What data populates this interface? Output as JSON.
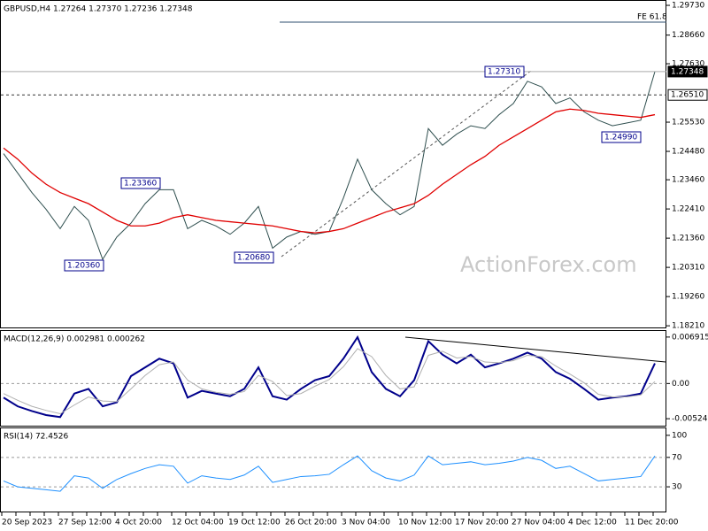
{
  "chart_data": [
    {
      "type": "price",
      "title": "GBPUSD,H4 1.27264 1.27370 1.27236 1.27348",
      "watermark": "ActionForex.com",
      "ylim": [
        1.1815,
        1.2989
      ],
      "yticks": [
        {
          "value": 1.2973,
          "label": "1.29730"
        },
        {
          "value": 1.2866,
          "label": "1.28660"
        },
        {
          "value": 1.2763,
          "label": "1.27630"
        },
        {
          "value": 1.2553,
          "label": "1.25530"
        },
        {
          "value": 1.2448,
          "label": "1.24480"
        },
        {
          "value": 1.2346,
          "label": "1.23460"
        },
        {
          "value": 1.2241,
          "label": "1.22410"
        },
        {
          "value": 1.2136,
          "label": "1.21360"
        },
        {
          "value": 1.2031,
          "label": "1.20310"
        },
        {
          "value": 1.1926,
          "label": "1.19260"
        },
        {
          "value": 1.1821,
          "label": "1.18210"
        }
      ],
      "series": [
        {
          "color": "#2f4f4f",
          "values": [
            1.244,
            1.237,
            1.23,
            1.224,
            1.217,
            1.225,
            1.22,
            1.206,
            1.214,
            1.219,
            1.226,
            1.231,
            1.231,
            1.217,
            1.22,
            1.218,
            1.215,
            1.219,
            1.225,
            1.21,
            1.214,
            1.216,
            1.215,
            1.216,
            1.228,
            1.242,
            1.231,
            1.226,
            1.222,
            1.225,
            1.253,
            1.247,
            1.251,
            1.254,
            1.253,
            1.258,
            1.262,
            1.27,
            1.268,
            1.262,
            1.264,
            1.259,
            1.256,
            1.254,
            1.255,
            1.256,
            1.2735
          ]
        },
        {
          "color": "#e00000",
          "values": [
            1.246,
            1.242,
            1.237,
            1.233,
            1.23,
            1.228,
            1.226,
            1.223,
            1.22,
            1.218,
            1.218,
            1.219,
            1.221,
            1.222,
            1.221,
            1.22,
            1.2195,
            1.219,
            1.2185,
            1.218,
            1.217,
            1.216,
            1.2155,
            1.216,
            1.217,
            1.219,
            1.221,
            1.223,
            1.2245,
            1.226,
            1.229,
            1.233,
            1.2365,
            1.24,
            1.243,
            1.247,
            1.25,
            1.253,
            1.256,
            1.259,
            1.26,
            1.2595,
            1.2585,
            1.258,
            1.2575,
            1.257,
            1.258
          ]
        }
      ],
      "price_lines": [
        {
          "value": 1.29127,
          "label": "FE 61.8"
        },
        {
          "value": 1.27348,
          "label": "1.27348"
        },
        {
          "value": 1.2651,
          "label": "1.26510"
        }
      ],
      "annotations": [
        "1.27310",
        "1.23360",
        "1.20360",
        "1.20680",
        "1.24990"
      ]
    },
    {
      "type": "macd",
      "title": "MACD(12,26,9) 0.002981 0.000262",
      "ylim": [
        -0.00628,
        0.00782
      ],
      "yticks": [
        0.006915,
        {
          "value": 0,
          "label": "0.00"
        },
        -0.005241
      ],
      "series": [
        {
          "color": "#00008b",
          "values": [
            -0.0021,
            -0.0034,
            -0.0041,
            -0.0047,
            -0.005,
            -0.0015,
            -0.0008,
            -0.0034,
            -0.0028,
            0.0011,
            0.0024,
            0.0037,
            0.003,
            -0.0021,
            -0.0011,
            -0.0015,
            -0.0019,
            -0.0008,
            0.0024,
            -0.0019,
            -0.0024,
            -0.0008,
            0.0005,
            0.0011,
            0.0037,
            0.0069,
            0.0017,
            -0.0008,
            -0.0019,
            0.0005,
            0.0063,
            0.0043,
            0.003,
            0.0043,
            0.0024,
            0.003,
            0.0037,
            0.0046,
            0.0037,
            0.0017,
            0.0007,
            -0.0008,
            -0.0024,
            -0.0021,
            -0.0019,
            -0.0015,
            0.003
          ]
        },
        {
          "color": "#b0b0b0",
          "values": [
            -0.0015,
            -0.0025,
            -0.0034,
            -0.004,
            -0.0045,
            -0.0032,
            -0.002,
            -0.0026,
            -0.0027,
            -0.0008,
            0.0012,
            0.0028,
            0.0032,
            0.0005,
            -0.0008,
            -0.0013,
            -0.0016,
            -0.0012,
            0.0012,
            0.0003,
            -0.0018,
            -0.0015,
            -0.0004,
            0.0006,
            0.0025,
            0.0052,
            0.004,
            0.0012,
            -0.0008,
            -0.0005,
            0.0042,
            0.0048,
            0.0038,
            0.004,
            0.0032,
            0.0031,
            0.0034,
            0.0042,
            0.004,
            0.0026,
            0.0014,
            0.0001,
            -0.0016,
            -0.002,
            -0.002,
            -0.0017,
            0.0003
          ]
        }
      ]
    },
    {
      "type": "rsi",
      "title": "RSI(14) 72.4526",
      "ylim": [
        -3.6,
        109.5
      ],
      "yticks": [
        100,
        70,
        30
      ],
      "series": [
        {
          "color": "#1e90ff",
          "values": [
            38,
            30,
            28,
            26,
            24,
            45,
            42,
            28,
            40,
            48,
            55,
            60,
            58,
            35,
            45,
            42,
            40,
            46,
            58,
            36,
            40,
            44,
            45,
            47,
            60,
            72,
            52,
            42,
            38,
            46,
            72,
            60,
            62,
            64,
            60,
            62,
            65,
            70,
            66,
            55,
            58,
            48,
            38,
            40,
            42,
            44,
            72
          ]
        }
      ],
      "categories": [
        "20 Sep 2023",
        null,
        null,
        null,
        "27 Sep 12:00",
        null,
        null,
        null,
        "4 Oct 20:00",
        null,
        null,
        null,
        "12 Oct 04:00",
        null,
        null,
        null,
        "19 Oct 12:00",
        null,
        null,
        null,
        "26 Oct 20:00",
        null,
        null,
        null,
        "3 Nov 04:00",
        null,
        null,
        null,
        "10 Nov 12:00",
        null,
        null,
        null,
        "17 Nov 20:00",
        null,
        null,
        null,
        "27 Nov 04:00",
        null,
        null,
        null,
        "4 Dec 12:00",
        null,
        null,
        null,
        "11 Dec 20:00",
        null,
        null
      ]
    }
  ]
}
